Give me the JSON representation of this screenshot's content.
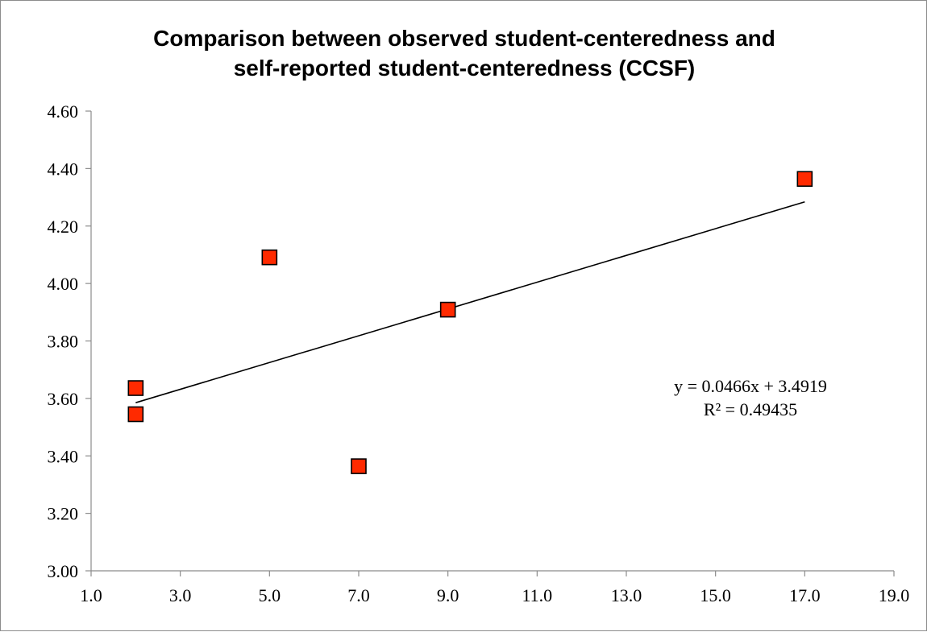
{
  "chart_data": {
    "type": "scatter",
    "title": "Comparison between observed student-centeredness and self-reported student-centeredness (CCSF)",
    "title_lines": [
      "Comparison between observed student-centeredness and",
      "self-reported student-centeredness (CCSF)"
    ],
    "xlabel": "",
    "ylabel": "",
    "xlim": [
      1.0,
      19.0
    ],
    "ylim": [
      3.0,
      4.6
    ],
    "x_ticks": [
      "1.0",
      "3.0",
      "5.0",
      "7.0",
      "9.0",
      "11.0",
      "13.0",
      "15.0",
      "17.0",
      "19.0"
    ],
    "y_ticks": [
      "3.00",
      "3.20",
      "3.40",
      "3.60",
      "3.80",
      "4.00",
      "4.20",
      "4.40",
      "4.60"
    ],
    "grid": false,
    "legend": "none",
    "marker": "square",
    "marker_color": "#ff2a00",
    "series": [
      {
        "points": [
          {
            "x": 2.0,
            "y": 3.636
          },
          {
            "x": 2.0,
            "y": 3.545
          },
          {
            "x": 5.0,
            "y": 4.091
          },
          {
            "x": 7.0,
            "y": 3.364
          },
          {
            "x": 9.0,
            "y": 3.909
          },
          {
            "x": 17.0,
            "y": 4.364
          }
        ]
      }
    ],
    "trendline": {
      "type": "linear",
      "slope": 0.0466,
      "intercept": 3.4919,
      "x_range": [
        2.0,
        17.0
      ],
      "color": "#000000",
      "equation_text": "y = 0.0466x + 3.4919",
      "r2_text": "R² = 0.49435"
    }
  }
}
